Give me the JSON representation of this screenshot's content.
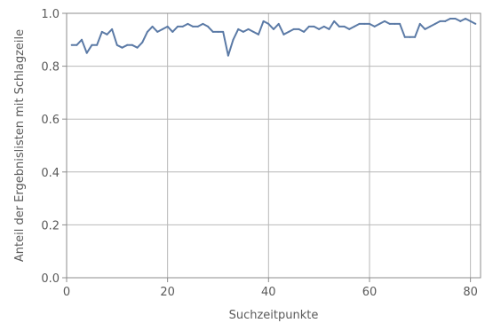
{
  "chart_data": {
    "type": "line",
    "title": "",
    "xlabel": "Suchzeitpunkte",
    "ylabel": "Anteil der Ergebnislisten mit Schlagzeile",
    "xlim": [
      0,
      82
    ],
    "ylim": [
      0,
      1.0
    ],
    "xticks": [
      0,
      20,
      40,
      60,
      80
    ],
    "xtick_labels": [
      "0",
      "20",
      "40",
      "60",
      "80"
    ],
    "yticks": [
      0,
      0.2,
      0.4,
      0.6,
      0.8,
      1.0
    ],
    "ytick_labels": [
      "0.0",
      "0.2",
      "0.4",
      "0.6",
      "0.8",
      "1.0"
    ],
    "grid": true,
    "line_color": "#5b7aa6",
    "series": [
      {
        "x": [
          1,
          2,
          3,
          4,
          5,
          6,
          7,
          8,
          9,
          10,
          11,
          12,
          13,
          14,
          15,
          16,
          17,
          18,
          19,
          20,
          21,
          22,
          23,
          24,
          25,
          26,
          27,
          28,
          29,
          30,
          31,
          32,
          33,
          34,
          35,
          36,
          37,
          38,
          39,
          40,
          41,
          42,
          43,
          44,
          45,
          46,
          47,
          48,
          49,
          50,
          51,
          52,
          53,
          54,
          55,
          56,
          57,
          58,
          59,
          60,
          61,
          62,
          63,
          64,
          65,
          66,
          67,
          68,
          69,
          70,
          71,
          72,
          73,
          74,
          75,
          76,
          77,
          78,
          79,
          80,
          81
        ],
        "y": [
          0.88,
          0.88,
          0.9,
          0.85,
          0.88,
          0.88,
          0.93,
          0.92,
          0.94,
          0.88,
          0.87,
          0.88,
          0.88,
          0.87,
          0.89,
          0.93,
          0.95,
          0.93,
          0.94,
          0.95,
          0.93,
          0.95,
          0.95,
          0.96,
          0.95,
          0.95,
          0.96,
          0.95,
          0.93,
          0.93,
          0.93,
          0.84,
          0.9,
          0.94,
          0.93,
          0.94,
          0.93,
          0.92,
          0.97,
          0.96,
          0.94,
          0.96,
          0.92,
          0.93,
          0.94,
          0.94,
          0.93,
          0.95,
          0.95,
          0.94,
          0.95,
          0.94,
          0.97,
          0.95,
          0.95,
          0.94,
          0.95,
          0.96,
          0.96,
          0.96,
          0.95,
          0.96,
          0.97,
          0.96,
          0.96,
          0.96,
          0.91,
          0.91,
          0.91,
          0.96,
          0.94,
          0.95,
          0.96,
          0.97,
          0.97,
          0.98,
          0.98,
          0.97,
          0.98,
          0.97,
          0.96
        ]
      }
    ]
  }
}
